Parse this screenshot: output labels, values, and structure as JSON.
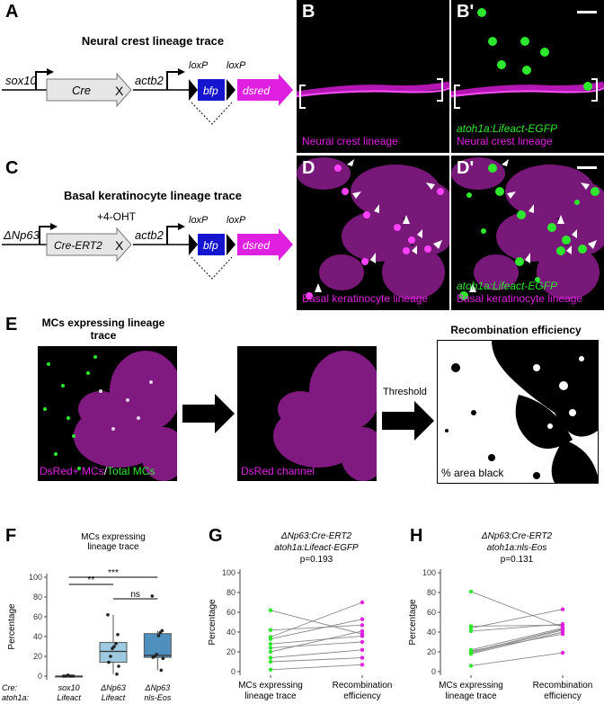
{
  "panels": {
    "A": "A",
    "B": "B",
    "B2": "B'",
    "C": "C",
    "D": "D",
    "D2": "D'",
    "E": "E",
    "F": "F",
    "G": "G",
    "H": "H"
  },
  "panelA": {
    "title": "Neural crest lineage trace",
    "driver": "sox10",
    "cre": "Cre",
    "cross": "X",
    "reporter": "actb2",
    "loxp1": "loxP",
    "loxp2": "loxP",
    "bfp": "bfp",
    "dsred": "dsred"
  },
  "panelB": {
    "caption": "Neural crest lineage"
  },
  "panelB2": {
    "caption_green": "atoh1a:Lifeact-EGFP",
    "caption_magenta": "Neural crest lineage"
  },
  "panelC": {
    "title": "Basal keratinocyte lineage trace",
    "driver": "ΔNp63",
    "cre": "Cre-ERT2",
    "treatment": "+4-OHT",
    "cross": "X",
    "reporter": "actb2",
    "loxp1": "loxP",
    "loxp2": "loxP",
    "bfp": "bfp",
    "dsred": "dsred"
  },
  "panelD": {
    "caption": "Basal keratinocyte lineage"
  },
  "panelD2": {
    "caption_green": "atoh1a:Lifeact-EGFP",
    "caption_magenta": "Basal keratinocyte lineage"
  },
  "panelE": {
    "title_left": "MCs expressing lineage trace",
    "title_right": "Recombination efficiency",
    "caption1_magenta": "DsRed+ MCs",
    "caption1_sep": "/",
    "caption1_green": "Total MCs",
    "caption2": "DsRed channel",
    "threshold_label": "Threshold",
    "caption3": "% area black"
  },
  "colors": {
    "magenta": "#e020e0",
    "green": "#2ee82e",
    "bfp_blue": "#1515d0",
    "box_light": "#9ecae1",
    "box_mid": "#6aa3c7",
    "box_dark": "#4f8fbd"
  },
  "chart_data": [
    {
      "id": "F",
      "type": "box",
      "title": "MCs expressing lineage trace",
      "ylabel": "Percentage",
      "ylim": [
        0,
        100
      ],
      "yticks": [
        0,
        20,
        40,
        60,
        80,
        100
      ],
      "row_labels": [
        "Cre:",
        "atoh1a:"
      ],
      "groups": [
        {
          "line1": "sox10",
          "line2": "Lifeact",
          "color": "#9ecae1",
          "q1": 0,
          "median": 0,
          "q3": 0,
          "whisker_low": 0,
          "whisker_high": 0,
          "points": [
            0,
            0,
            0,
            0,
            1,
            0,
            0
          ]
        },
        {
          "line1": "ΔNp63",
          "line2": "Lifeact",
          "color": "#9ecae1",
          "q1": 14,
          "median": 25,
          "q3": 34,
          "whisker_low": 2,
          "whisker_high": 62,
          "points": [
            62,
            42,
            33,
            30,
            28,
            20,
            14,
            10,
            2
          ]
        },
        {
          "line1": "ΔNp63",
          "line2": "nls-Eos",
          "color": "#4f8fbd",
          "q1": 19,
          "median": 21,
          "q3": 43,
          "whisker_low": 6,
          "whisker_high": 46,
          "points": [
            81,
            46,
            44,
            41,
            22,
            20,
            19,
            18,
            6
          ]
        }
      ],
      "significance": [
        {
          "from": 0,
          "to": 1,
          "label": "**"
        },
        {
          "from": 0,
          "to": 2,
          "label": "***"
        },
        {
          "from": 1,
          "to": 2,
          "label": "ns"
        }
      ]
    },
    {
      "id": "G",
      "type": "paired-line",
      "title": "ΔNp63:Cre-ERT2",
      "subtitle": "atoh1a:Lifeact-EGFP",
      "pvalue": "p=0.193",
      "ylabel": "Percentage",
      "ylim": [
        0,
        100
      ],
      "yticks": [
        0,
        20,
        40,
        60,
        80,
        100
      ],
      "categories": [
        "MCs expressing lineage trace",
        "Recombination efficiency"
      ],
      "pairs": [
        [
          62,
          38
        ],
        [
          42,
          47
        ],
        [
          33,
          53
        ],
        [
          28,
          36
        ],
        [
          24,
          30
        ],
        [
          20,
          41
        ],
        [
          14,
          22
        ],
        [
          10,
          14
        ],
        [
          2,
          7
        ],
        [
          35,
          70
        ]
      ]
    },
    {
      "id": "H",
      "type": "paired-line",
      "title": "ΔNp63:Cre-ERT2",
      "subtitle": "atoh1a:nls-Eos",
      "pvalue": "p=0.131",
      "ylabel": "Percentage",
      "ylim": [
        0,
        100
      ],
      "yticks": [
        0,
        20,
        40,
        60,
        80,
        100
      ],
      "categories": [
        "MCs expressing lineage trace",
        "Recombination efficiency"
      ],
      "pairs": [
        [
          81,
          45
        ],
        [
          46,
          47
        ],
        [
          44,
          63
        ],
        [
          41,
          48
        ],
        [
          22,
          44
        ],
        [
          20,
          43
        ],
        [
          19,
          42
        ],
        [
          18,
          40
        ],
        [
          6,
          19
        ],
        [
          21,
          38
        ]
      ]
    }
  ]
}
